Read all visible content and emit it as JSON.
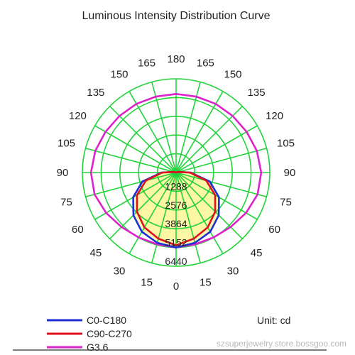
{
  "chart_data": {
    "type": "polar",
    "title": "Luminous Intensity Distribution Curve",
    "unit_label": "Unit: cd",
    "angle_labels": {
      "right": [
        "0",
        "15",
        "30",
        "45",
        "60",
        "75",
        "90",
        "105",
        "120",
        "135",
        "150",
        "165",
        "180"
      ],
      "left": [
        "15",
        "30",
        "45",
        "60",
        "75",
        "90",
        "105",
        "120",
        "135",
        "150",
        "165"
      ]
    },
    "radial_ticks": [
      "1288",
      "2576",
      "3864",
      "5152",
      "6440"
    ],
    "radial_max": 6440,
    "grid": true,
    "series": [
      {
        "name": "C0-C180",
        "color": "#1f2fd6",
        "angles": [
          0,
          15,
          30,
          45,
          60,
          75,
          90,
          105,
          120,
          135,
          150,
          165,
          180
        ],
        "values": [
          5150,
          5000,
          4700,
          4150,
          3400,
          2400,
          1000,
          150,
          0,
          0,
          0,
          0,
          0
        ]
      },
      {
        "name": "C90-C270",
        "color": "#e0101c",
        "angles": [
          0,
          15,
          30,
          45,
          60,
          75,
          90,
          105,
          120,
          135,
          150,
          165,
          180
        ],
        "values": [
          5000,
          4700,
          4350,
          3800,
          3100,
          2150,
          950,
          150,
          0,
          0,
          0,
          0,
          0
        ]
      },
      {
        "name": "G3.6",
        "color": "#dd22cc",
        "angles": [
          0,
          15,
          30,
          45,
          60,
          75,
          90,
          105,
          120,
          135,
          150,
          165,
          180
        ],
        "values": [
          5152,
          5100,
          5150,
          5300,
          5550,
          5800,
          5850,
          5750,
          5600,
          5500,
          5450,
          5400,
          5400
        ]
      }
    ]
  },
  "watermark": "szsuperjewelry.store.bossgoo.com"
}
